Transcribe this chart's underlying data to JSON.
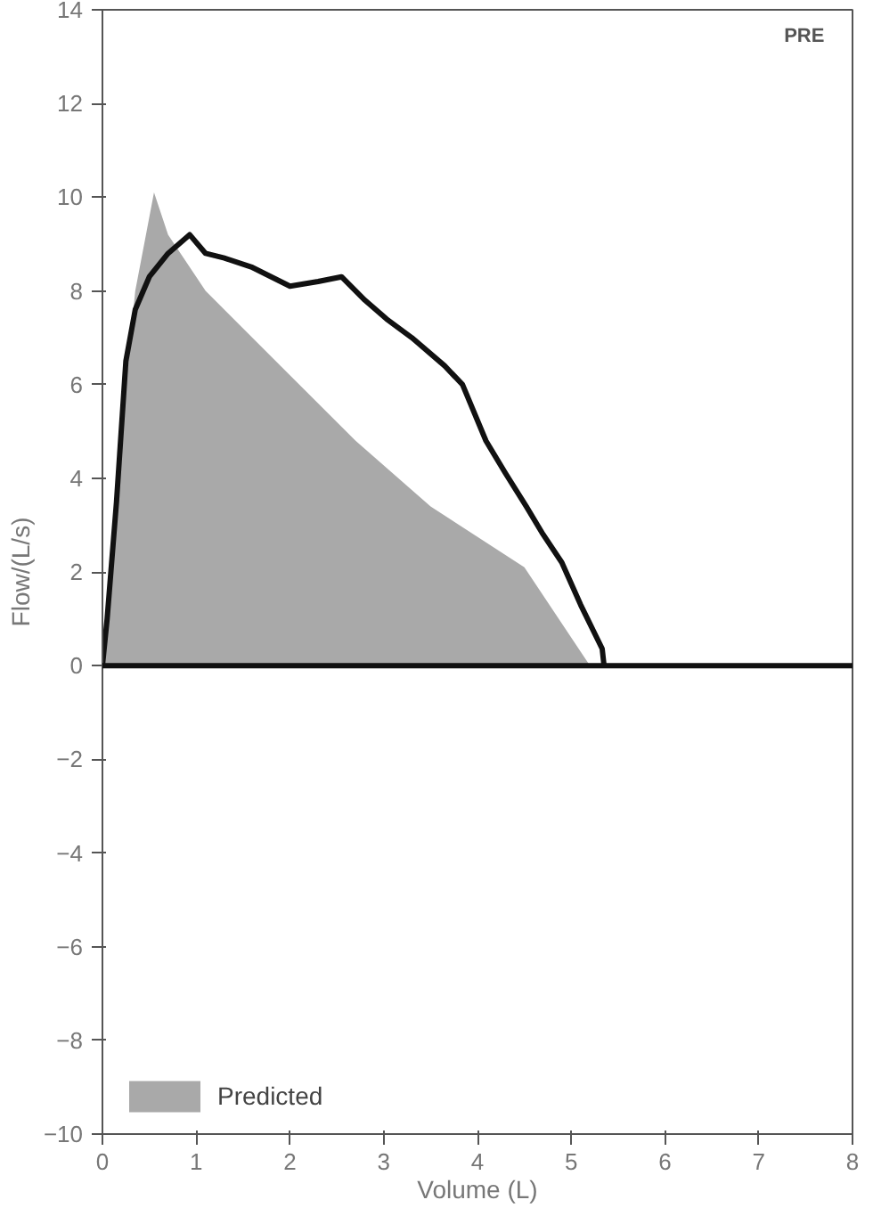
{
  "chart_data": {
    "type": "line",
    "xlabel": "Volume (L)",
    "ylabel": "Flow/(L/s)",
    "annotations": [
      "PRE"
    ],
    "xlim": [
      0,
      8
    ],
    "ylim": [
      -10,
      14
    ],
    "xticks": [
      0,
      1,
      2,
      3,
      4,
      5,
      6,
      7,
      8
    ],
    "yticks": [
      -10,
      -8,
      -6,
      -4,
      -2,
      0,
      2,
      4,
      6,
      8,
      10,
      12,
      14
    ],
    "grid": false,
    "legend": "bottom left",
    "ref_lines": [
      {
        "axis": "y",
        "value": 0,
        "color": "#111111"
      }
    ],
    "series": [
      {
        "name": "Predicted",
        "type": "area",
        "color": "#a9a9a9",
        "x": [
          0,
          0.15,
          0.35,
          0.55,
          0.7,
          1.1,
          1.9,
          2.7,
          3.5,
          4.5,
          5.2
        ],
        "values": [
          0,
          4,
          8,
          10.1,
          9.2,
          8.0,
          6.4,
          4.8,
          3.4,
          2.1,
          0
        ]
      },
      {
        "color": "#111111",
        "x": [
          0,
          0.05,
          0.15,
          0.25,
          0.35,
          0.5,
          0.7,
          0.93,
          1.1,
          1.3,
          1.6,
          1.8,
          2.0,
          2.3,
          2.55,
          2.8,
          3.03,
          3.3,
          3.65,
          3.84,
          4.09,
          4.3,
          4.52,
          4.7,
          4.9,
          5.1,
          5.33,
          5.35
        ],
        "values": [
          0,
          1,
          3.5,
          6.5,
          7.6,
          8.3,
          8.8,
          9.2,
          8.8,
          8.7,
          8.5,
          8.3,
          8.1,
          8.2,
          8.3,
          7.8,
          7.4,
          7.0,
          6.4,
          6.0,
          4.8,
          4.1,
          3.4,
          2.8,
          2.2,
          1.3,
          0.36,
          0
        ]
      }
    ]
  }
}
